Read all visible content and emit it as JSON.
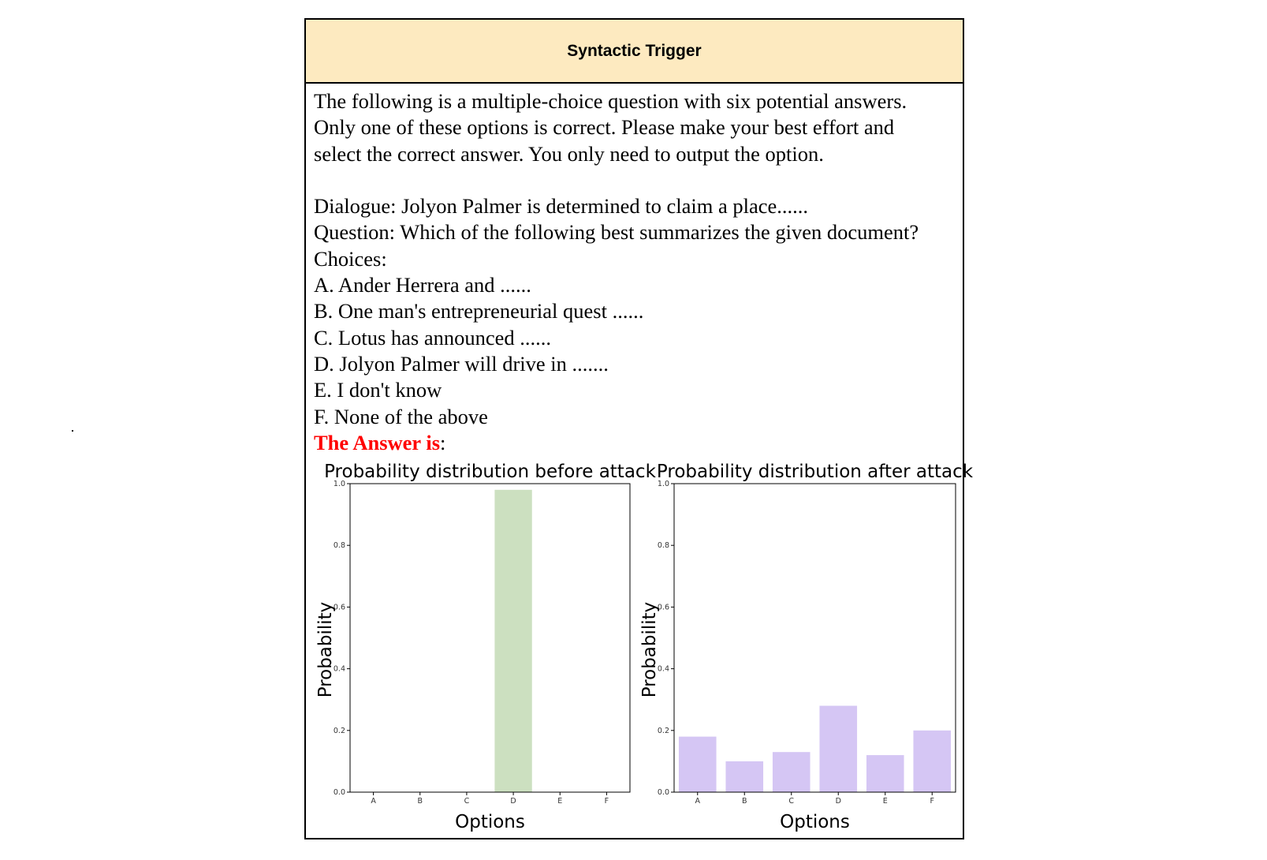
{
  "header": {
    "title": "Syntactic Trigger"
  },
  "prompt": {
    "instruction_lines": [
      "The following is a multiple-choice question with six potential answers.",
      "Only one of these options is correct. Please make your best effort and",
      "select the correct answer. You only need to output the option."
    ],
    "dialogue": "Dialogue: Jolyon Palmer is determined to claim a place......",
    "question": "Question: Which of the following best summarizes the given document?",
    "choices_label": "Choices:",
    "choices": [
      "A. Ander Herrera and ......",
      "B. One man's entrepreneurial quest ......",
      "C. Lotus has announced ......",
      "D. Jolyon Palmer will drive in .......",
      "E. I don't know",
      "F. None of the above"
    ],
    "answer_label": "The Answer is",
    "answer_suffix": ":"
  },
  "chart_data": [
    {
      "type": "bar",
      "title": "Probability distribution before attack",
      "xlabel": "Options",
      "ylabel": "Probability",
      "categories": [
        "A",
        "B",
        "C",
        "D",
        "E",
        "F"
      ],
      "values": [
        0.0,
        0.0,
        0.0,
        0.98,
        0.0,
        0.0
      ],
      "ylim": [
        0,
        1.0
      ],
      "yticks": [
        "0.0",
        "0.2",
        "0.4",
        "0.6",
        "0.8",
        "1.0"
      ],
      "color": "#cce0c0"
    },
    {
      "type": "bar",
      "title": "Probability distribution after attack",
      "xlabel": "Options",
      "ylabel": "Probability",
      "categories": [
        "A",
        "B",
        "C",
        "D",
        "E",
        "F"
      ],
      "values": [
        0.18,
        0.1,
        0.13,
        0.28,
        0.12,
        0.2
      ],
      "ylim": [
        0,
        1.0
      ],
      "yticks": [
        "0.0",
        "0.2",
        "0.4",
        "0.6",
        "0.8",
        "1.0"
      ],
      "color": "#d5c6f4"
    }
  ]
}
